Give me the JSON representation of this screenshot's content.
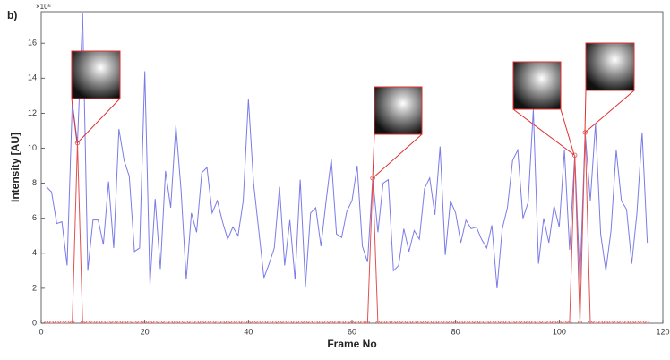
{
  "chart_data": {
    "type": "line",
    "panel_label": "b)",
    "y_scale_label": "×10⁶",
    "xlabel": "Frame No",
    "ylabel": "Intensity [AU]",
    "x": [
      1,
      2,
      3,
      4,
      5,
      6,
      7,
      8,
      9,
      10,
      11,
      12,
      13,
      14,
      15,
      16,
      17,
      18,
      19,
      20,
      21,
      22,
      23,
      24,
      25,
      26,
      27,
      28,
      29,
      30,
      31,
      32,
      33,
      34,
      35,
      36,
      37,
      38,
      39,
      40,
      41,
      42,
      43,
      44,
      45,
      46,
      47,
      48,
      49,
      50,
      51,
      52,
      53,
      54,
      55,
      56,
      57,
      58,
      59,
      60,
      61,
      62,
      63,
      64,
      65,
      66,
      67,
      68,
      69,
      70,
      71,
      72,
      73,
      74,
      75,
      76,
      77,
      78,
      79,
      80,
      81,
      82,
      83,
      84,
      85,
      86,
      87,
      88,
      89,
      90,
      91,
      92,
      93,
      94,
      95,
      96,
      97,
      98,
      99,
      100,
      101,
      102,
      103,
      104,
      105,
      106,
      107,
      108,
      109,
      110,
      111,
      112,
      113,
      114,
      115,
      116,
      117
    ],
    "series": [
      {
        "color": "#7b7be8",
        "marker": "none",
        "values": [
          7.8,
          7.5,
          5.7,
          5.8,
          3.3,
          12.6,
          10.3,
          17.7,
          3.0,
          5.9,
          5.9,
          4.5,
          8.1,
          4.3,
          11.1,
          9.3,
          8.4,
          4.1,
          4.3,
          14.4,
          2.2,
          7.1,
          3.1,
          8.7,
          6.6,
          11.3,
          7.6,
          2.5,
          6.3,
          5.2,
          8.6,
          8.9,
          6.3,
          7.0,
          5.8,
          4.8,
          5.5,
          5.0,
          7.0,
          12.8,
          8.0,
          5.3,
          2.6,
          3.4,
          4.3,
          7.8,
          3.3,
          5.9,
          2.5,
          8.2,
          2.1,
          6.3,
          6.6,
          4.4,
          7.0,
          9.4,
          5.1,
          4.9,
          6.4,
          7.0,
          9.0,
          4.4,
          3.5,
          8.3,
          5.2,
          8.0,
          8.2,
          3.0,
          3.3,
          5.4,
          4.1,
          5.3,
          4.8,
          7.7,
          8.3,
          6.2,
          10.1,
          3.9,
          7.0,
          6.3,
          4.6,
          5.9,
          5.4,
          5.5,
          4.8,
          4.3,
          5.6,
          2.0,
          5.4,
          6.6,
          9.3,
          9.9,
          6.0,
          6.9,
          12.2,
          3.4,
          6.0,
          4.6,
          6.7,
          5.5,
          9.9,
          4.2,
          9.6,
          2.4,
          10.9,
          7.0,
          11.4,
          5.1,
          3.0,
          5.3,
          9.9,
          7.0,
          6.5,
          3.4,
          6.3,
          10.9,
          4.6
        ]
      },
      {
        "color": "#e05050",
        "marker": "circle",
        "values": [
          0,
          0,
          0,
          0,
          0,
          0,
          10.3,
          0,
          0,
          0,
          0,
          0,
          0,
          0,
          0,
          0,
          0,
          0,
          0,
          0,
          0,
          0,
          0,
          0,
          0,
          0,
          0,
          0,
          0,
          0,
          0,
          0,
          0,
          0,
          0,
          0,
          0,
          0,
          0,
          0,
          0,
          0,
          0,
          0,
          0,
          0,
          0,
          0,
          0,
          0,
          0,
          0,
          0,
          0,
          0,
          0,
          0,
          0,
          0,
          0,
          0,
          0,
          0,
          8.3,
          0,
          0,
          0,
          0,
          0,
          0,
          0,
          0,
          0,
          0,
          0,
          0,
          0,
          0,
          0,
          0,
          0,
          0,
          0,
          0,
          0,
          0,
          0,
          0,
          0,
          0,
          0,
          0,
          0,
          0,
          0,
          0,
          0,
          0,
          0,
          0,
          0,
          0,
          9.6,
          0,
          10.9,
          0,
          0,
          0,
          0,
          0,
          0,
          0,
          0,
          0,
          0,
          0,
          0
        ]
      }
    ],
    "xlim": [
      0,
      120
    ],
    "xticks": [
      0,
      20,
      40,
      60,
      80,
      100,
      120
    ],
    "ylim": [
      0,
      17.8
    ],
    "yticks": [
      0,
      2,
      4,
      6,
      8,
      10,
      12,
      14,
      16
    ]
  }
}
